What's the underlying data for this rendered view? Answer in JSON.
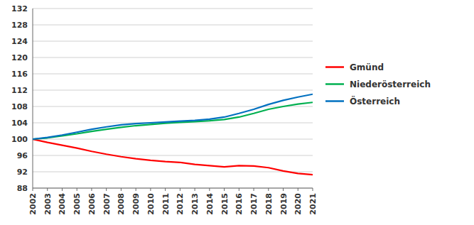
{
  "chart_data": {
    "type": "line",
    "x": [
      2002,
      2003,
      2004,
      2005,
      2006,
      2007,
      2008,
      2009,
      2010,
      2011,
      2012,
      2013,
      2014,
      2015,
      2016,
      2017,
      2018,
      2019,
      2020,
      2021
    ],
    "series": [
      {
        "name": "Gmünd",
        "color": "#ff0000",
        "values": [
          100,
          99.2,
          98.5,
          97.8,
          97.0,
          96.3,
          95.7,
          95.2,
          94.8,
          94.5,
          94.3,
          93.8,
          93.5,
          93.2,
          93.5,
          93.4,
          93.0,
          92.2,
          91.6,
          91.3
        ]
      },
      {
        "name": "Niederösterreich",
        "color": "#00b050",
        "values": [
          100,
          100.3,
          100.8,
          101.3,
          101.9,
          102.4,
          102.9,
          103.3,
          103.6,
          103.9,
          104.1,
          104.3,
          104.5,
          104.8,
          105.4,
          106.3,
          107.3,
          108.0,
          108.6,
          109.0
        ]
      },
      {
        "name": "Österreich",
        "color": "#0070c0",
        "values": [
          100,
          100.4,
          101.0,
          101.7,
          102.4,
          103.0,
          103.5,
          103.8,
          104.0,
          104.2,
          104.4,
          104.6,
          104.9,
          105.4,
          106.3,
          107.3,
          108.5,
          109.5,
          110.3,
          111.0
        ]
      }
    ],
    "xlim": [
      2002,
      2021
    ],
    "xticks": [
      2002,
      2003,
      2004,
      2005,
      2006,
      2007,
      2008,
      2009,
      2010,
      2011,
      2012,
      2013,
      2014,
      2015,
      2016,
      2017,
      2018,
      2019,
      2020,
      2021
    ],
    "ylim": [
      88,
      132
    ],
    "yticks": [
      88,
      92,
      96,
      100,
      104,
      108,
      112,
      116,
      120,
      124,
      128,
      132
    ],
    "grid": true,
    "legend": "right"
  }
}
